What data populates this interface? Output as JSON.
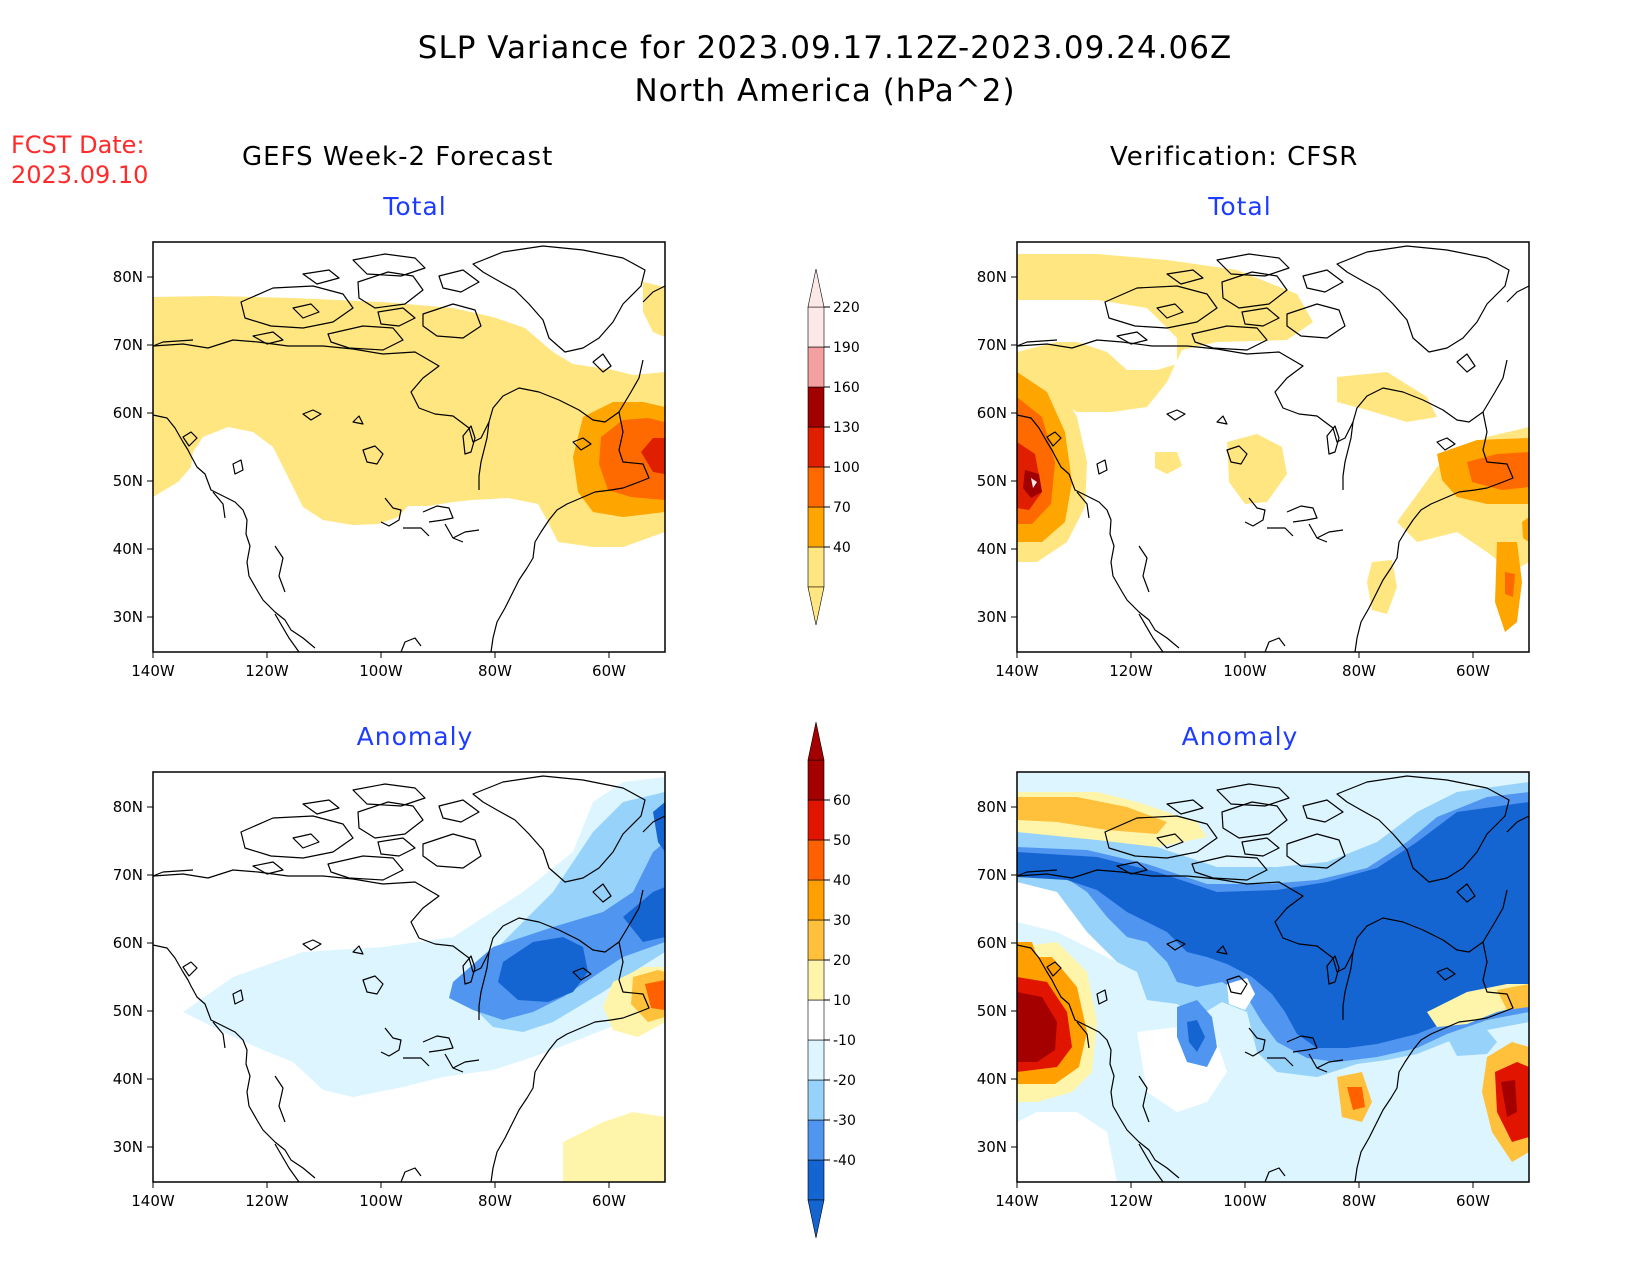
{
  "header": {
    "title_line1": "SLP Variance for 2023.09.17.12Z-2023.09.24.06Z",
    "title_line2": "North America (hPa^2)"
  },
  "fcst": {
    "label": "FCST Date:",
    "date": "2023.09.10"
  },
  "columns": {
    "left": "GEFS Week-2 Forecast",
    "right": "Verification: CFSR"
  },
  "panels": {
    "gefs_total": {
      "title": "Total"
    },
    "cfsr_total": {
      "title": "Total"
    },
    "gefs_anomaly": {
      "title": "Anomaly"
    },
    "cfsr_anomaly": {
      "title": "Anomaly"
    }
  },
  "axes": {
    "lat_ticks": [
      "80N",
      "70N",
      "60N",
      "50N",
      "40N",
      "30N"
    ],
    "lon_ticks": [
      "140W",
      "120W",
      "100W",
      "80W",
      "60W"
    ]
  },
  "colorbars": {
    "total": {
      "labels": [
        "40",
        "70",
        "100",
        "130",
        "160",
        "190",
        "220"
      ],
      "colors": [
        "#ffe680",
        "#ffa500",
        "#ff6a00",
        "#e01e00",
        "#a00000",
        "#f4a0a0",
        "#fde8e8"
      ]
    },
    "anomaly": {
      "labels": [
        "-40",
        "-30",
        "-20",
        "-10",
        "10",
        "20",
        "30",
        "40",
        "50",
        "60"
      ],
      "colors": [
        "#1464d2",
        "#5096f0",
        "#96d2fa",
        "#dcf5ff",
        "#ffffff",
        "#fff5aa",
        "#ffc03c",
        "#ffa000",
        "#ff6000",
        "#e11400",
        "#a50000"
      ]
    }
  },
  "palette": {
    "title_blue": "#1e3cff",
    "fcst_red": "#ff2a2a",
    "coast": "#000000"
  }
}
